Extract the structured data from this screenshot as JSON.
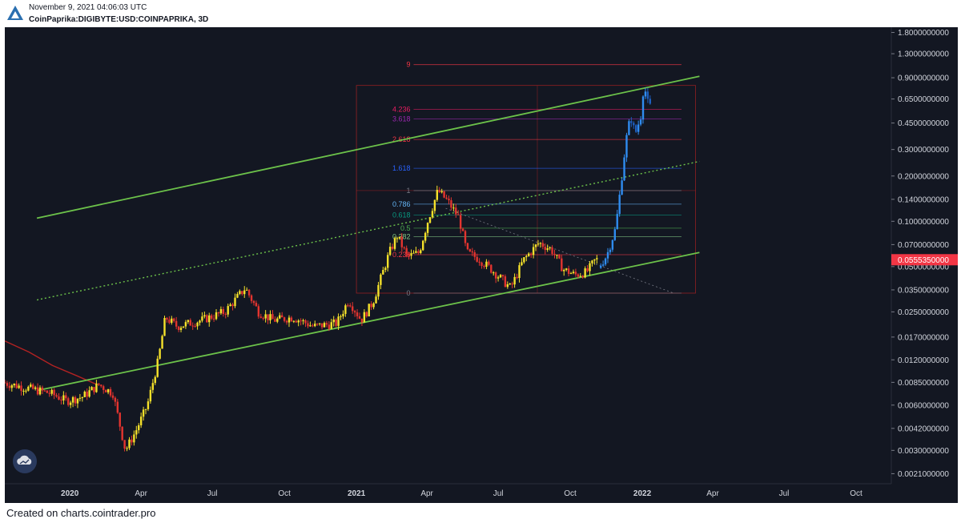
{
  "header": {
    "date": "November 9, 2021 04:06:03 UTC",
    "symbol": "CoinPaprika:DIGIBYTE:USD:COINPAPRIKA, 3D"
  },
  "footer": {
    "text": "Created on charts.cointrader.pro"
  },
  "colors": {
    "background": "#131722",
    "candle_up": "#f5e12a",
    "candle_down": "#e3342f",
    "projection": "#2f8cf0",
    "channel": "#6cc24a",
    "price_label": "#f23645",
    "fib_frame": "#b22222"
  },
  "icons": {
    "logo": "triangle-logo-icon",
    "watermark": "cloud-watermark-icon"
  },
  "chart_data": {
    "type": "candlestick",
    "y_scale": "log",
    "ylim": [
      0.0018,
      1.95
    ],
    "xlim": [
      "2019-10-10",
      "2022-11-15"
    ],
    "y_ticks": [
      "1.8000000000",
      "1.3000000000",
      "0.9000000000",
      "0.6500000000",
      "0.4500000000",
      "0.3000000000",
      "0.2000000000",
      "0.1400000000",
      "0.1000000000",
      "0.0700000000",
      "0.0500000000",
      "0.0350000000",
      "0.0250000000",
      "0.0170000000",
      "0.0120000000",
      "0.0085000000",
      "0.0060000000",
      "0.0042000000",
      "0.0030000000",
      "0.0021000000"
    ],
    "x_ticks": [
      {
        "label": "2020",
        "date": "2020-01-01",
        "bold": true
      },
      {
        "label": "Apr",
        "date": "2020-04-01",
        "bold": false
      },
      {
        "label": "Jul",
        "date": "2020-07-01",
        "bold": false
      },
      {
        "label": "Oct",
        "date": "2020-10-01",
        "bold": false
      },
      {
        "label": "2021",
        "date": "2021-01-01",
        "bold": true
      },
      {
        "label": "Apr",
        "date": "2021-04-01",
        "bold": false
      },
      {
        "label": "Jul",
        "date": "2021-07-01",
        "bold": false
      },
      {
        "label": "Oct",
        "date": "2021-10-01",
        "bold": false
      },
      {
        "label": "2022",
        "date": "2022-01-01",
        "bold": true
      },
      {
        "label": "Apr",
        "date": "2022-04-01",
        "bold": false
      },
      {
        "label": "Jul",
        "date": "2022-07-01",
        "bold": false
      },
      {
        "label": "Oct",
        "date": "2022-10-01",
        "bold": false
      }
    ],
    "current_price": "0.0555350000",
    "price_path": [
      [
        "2019-10-10",
        0.0085
      ],
      [
        "2019-11-10",
        0.0078
      ],
      [
        "2019-12-10",
        0.0072
      ],
      [
        "2019-12-31",
        0.0064
      ],
      [
        "2020-01-20",
        0.0068
      ],
      [
        "2020-02-10",
        0.0082
      ],
      [
        "2020-02-28",
        0.0072
      ],
      [
        "2020-03-15",
        0.003
      ],
      [
        "2020-03-28",
        0.004
      ],
      [
        "2020-04-12",
        0.006
      ],
      [
        "2020-04-26",
        0.012
      ],
      [
        "2020-05-05",
        0.023
      ],
      [
        "2020-05-20",
        0.02
      ],
      [
        "2020-06-20",
        0.022
      ],
      [
        "2020-07-20",
        0.025
      ],
      [
        "2020-08-15",
        0.036
      ],
      [
        "2020-09-01",
        0.025
      ],
      [
        "2020-09-20",
        0.022
      ],
      [
        "2020-10-15",
        0.023
      ],
      [
        "2020-11-10",
        0.02
      ],
      [
        "2020-12-10",
        0.021
      ],
      [
        "2020-12-25",
        0.03
      ],
      [
        "2021-01-10",
        0.022
      ],
      [
        "2021-01-25",
        0.029
      ],
      [
        "2021-02-15",
        0.062
      ],
      [
        "2021-02-25",
        0.08
      ],
      [
        "2021-03-10",
        0.058
      ],
      [
        "2021-03-25",
        0.062
      ],
      [
        "2021-04-05",
        0.1
      ],
      [
        "2021-04-18",
        0.16
      ],
      [
        "2021-05-01",
        0.135
      ],
      [
        "2021-05-15",
        0.105
      ],
      [
        "2021-05-25",
        0.062
      ],
      [
        "2021-06-10",
        0.056
      ],
      [
        "2021-06-25",
        0.048
      ],
      [
        "2021-07-20",
        0.036
      ],
      [
        "2021-08-05",
        0.055
      ],
      [
        "2021-08-25",
        0.072
      ],
      [
        "2021-09-10",
        0.065
      ],
      [
        "2021-09-25",
        0.048
      ],
      [
        "2021-10-10",
        0.044
      ],
      [
        "2021-10-25",
        0.046
      ],
      [
        "2021-11-05",
        0.0555
      ]
    ],
    "projection_path": [
      [
        "2021-11-09",
        0.049
      ],
      [
        "2021-11-20",
        0.06
      ],
      [
        "2021-12-01",
        0.09
      ],
      [
        "2021-12-08",
        0.18
      ],
      [
        "2021-12-14",
        0.34
      ],
      [
        "2021-12-20",
        0.5
      ],
      [
        "2021-12-26",
        0.38
      ],
      [
        "2022-01-02",
        0.5
      ],
      [
        "2022-01-06",
        0.82
      ],
      [
        "2022-01-12",
        0.58
      ]
    ],
    "fib_levels": [
      {
        "label": "0",
        "value": 0.0333,
        "color": "#787b86"
      },
      {
        "label": "0.236",
        "value": 0.06,
        "color": "#f23645"
      },
      {
        "label": "0.382",
        "value": 0.079,
        "color": "#81c784"
      },
      {
        "label": "0.5",
        "value": 0.09,
        "color": "#4caf50"
      },
      {
        "label": "0.618",
        "value": 0.11,
        "color": "#089981"
      },
      {
        "label": "0.786",
        "value": 0.13,
        "color": "#64b5f6"
      },
      {
        "label": "1",
        "value": 0.16,
        "color": "#787b86"
      },
      {
        "label": "1.618",
        "value": 0.225,
        "color": "#2962ff"
      },
      {
        "label": "2.618",
        "value": 0.35,
        "color": "#f23645"
      },
      {
        "label": "3.618",
        "value": 0.48,
        "color": "#9c27b0"
      },
      {
        "label": "4.236",
        "value": 0.555,
        "color": "#e91e63"
      },
      {
        "label": "9",
        "value": 1.1,
        "color": "#f23645"
      }
    ],
    "fib_range": {
      "start": "2021-03-15",
      "end": "2022-02-20"
    },
    "fib_box": {
      "start": "2021-01-01",
      "end": "2022-03-10",
      "top": 0.8,
      "bottom": 0.0333
    },
    "trendlines": [
      {
        "name": "upper-channel",
        "style": "solid",
        "p1": [
          "2019-11-20",
          0.105
        ],
        "p2": [
          "2022-03-15",
          0.92
        ]
      },
      {
        "name": "middle-channel",
        "style": "dotted",
        "p1": [
          "2019-11-20",
          0.03
        ],
        "p2": [
          "2022-03-15",
          0.25
        ]
      },
      {
        "name": "lower-channel",
        "style": "solid",
        "p1": [
          "2019-11-20",
          0.0075
        ],
        "p2": [
          "2022-03-15",
          0.062
        ]
      }
    ],
    "diagonal": {
      "p1": [
        "2021-04-25",
        0.122
      ],
      "p2": [
        "2022-02-10",
        0.0333
      ]
    },
    "red_curve": [
      [
        "2019-10-10",
        0.016
      ],
      [
        "2019-11-10",
        0.0135
      ],
      [
        "2019-12-10",
        0.011
      ],
      [
        "2020-01-10",
        0.0094
      ],
      [
        "2020-02-05",
        0.0082
      ]
    ]
  }
}
